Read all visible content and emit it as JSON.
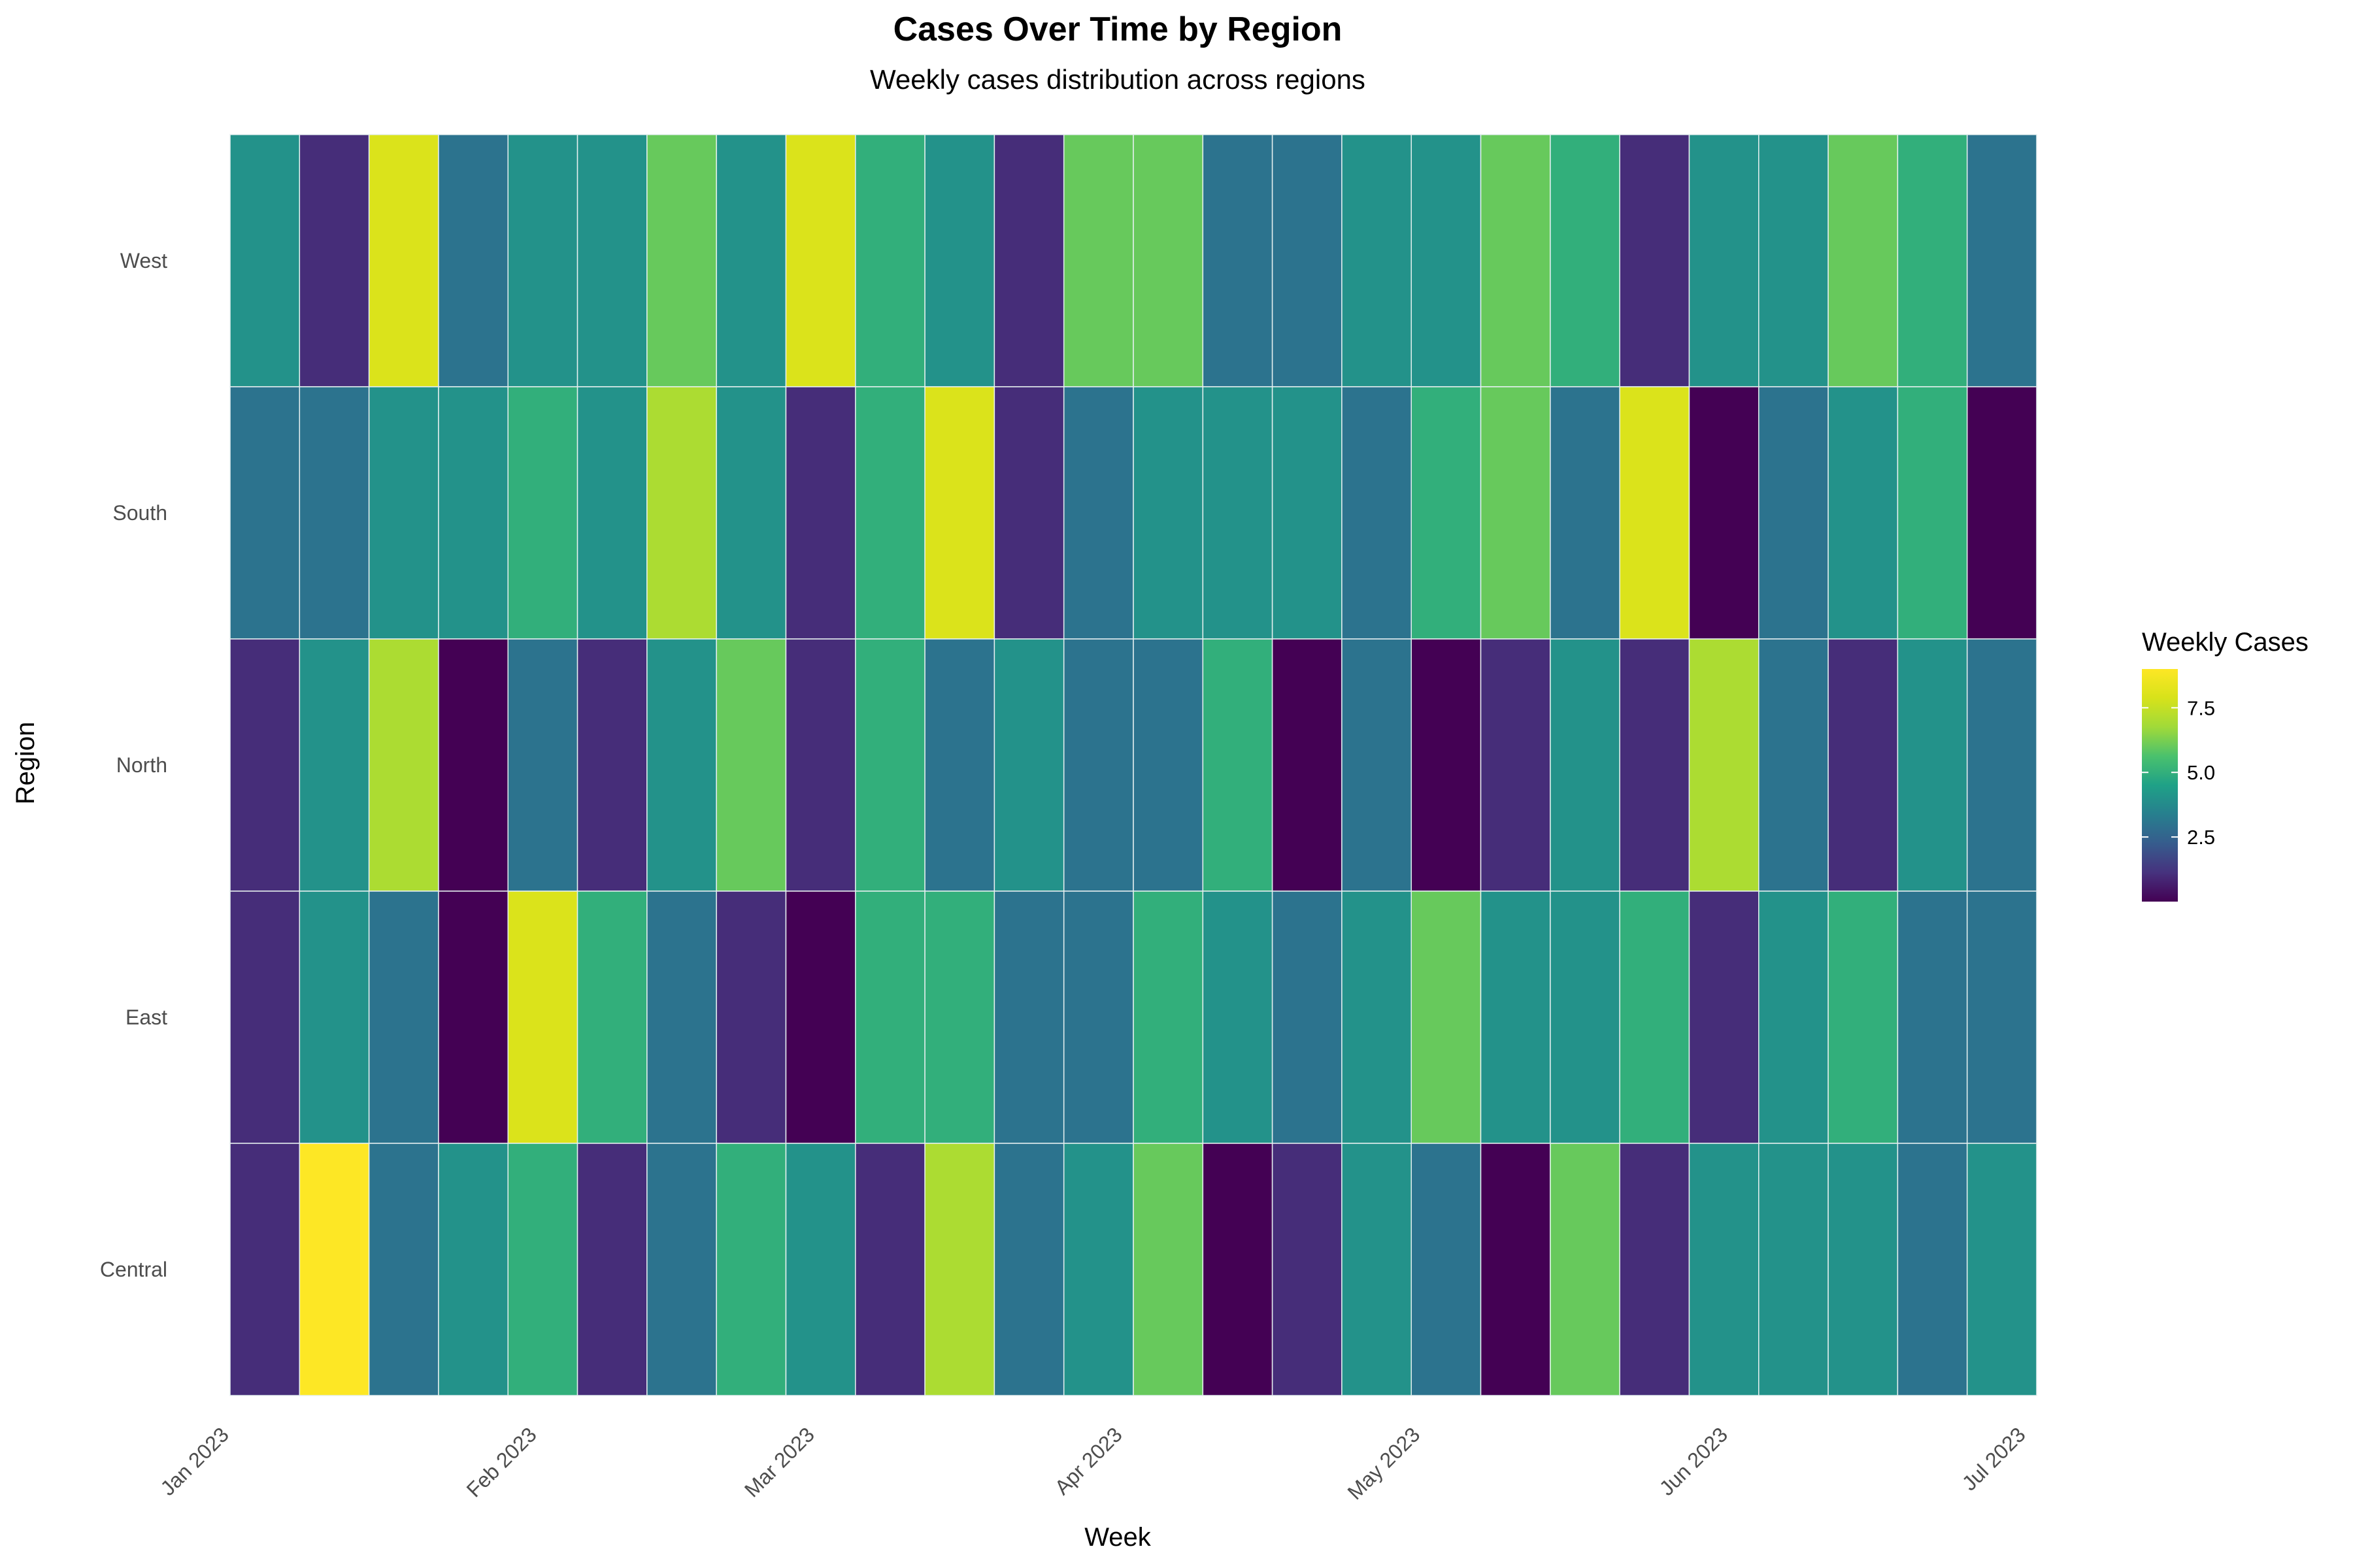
{
  "chart_data": {
    "type": "heatmap",
    "title": "Cases Over Time by Region",
    "subtitle": "Weekly cases distribution across regions",
    "xlabel": "Week",
    "ylabel": "Region",
    "legend_title": "Weekly Cases",
    "legend_position": "right",
    "colormap": "viridis",
    "value_range": [
      0,
      9
    ],
    "legend_ticks": [
      {
        "value": 2.5,
        "label": "2.5"
      },
      {
        "value": 5.0,
        "label": "5.0"
      },
      {
        "value": 7.5,
        "label": "7.5"
      }
    ],
    "x_ticks": [
      "Jan 2023",
      "Feb 2023",
      "Mar 2023",
      "Apr 2023",
      "May 2023",
      "Jun 2023",
      "Jul 2023"
    ],
    "weeks": [
      "2023-01-01",
      "2023-01-08",
      "2023-01-15",
      "2023-01-22",
      "2023-01-29",
      "2023-02-05",
      "2023-02-12",
      "2023-02-19",
      "2023-02-26",
      "2023-03-05",
      "2023-03-12",
      "2023-03-19",
      "2023-03-26",
      "2023-04-02",
      "2023-04-09",
      "2023-04-16",
      "2023-04-23",
      "2023-04-30",
      "2023-05-07",
      "2023-05-14",
      "2023-05-21",
      "2023-05-28",
      "2023-06-04",
      "2023-06-11",
      "2023-06-18",
      "2023-06-25"
    ],
    "regions": [
      "West",
      "South",
      "North",
      "East",
      "Central"
    ],
    "series": [
      {
        "name": "West",
        "values": [
          4,
          1,
          8,
          3,
          4,
          4,
          6,
          4,
          8,
          5,
          4,
          1,
          6,
          6,
          3,
          3,
          4,
          4,
          6,
          5,
          1,
          4,
          4,
          6,
          5,
          3
        ]
      },
      {
        "name": "South",
        "values": [
          3,
          3,
          4,
          4,
          5,
          4,
          7,
          4,
          1,
          5,
          8,
          1,
          3,
          4,
          4,
          4,
          3,
          5,
          6,
          3,
          8,
          0,
          3,
          4,
          5,
          0
        ]
      },
      {
        "name": "North",
        "values": [
          1,
          4,
          7,
          0,
          3,
          1,
          4,
          6,
          1,
          5,
          3,
          4,
          3,
          3,
          5,
          0,
          3,
          0,
          1,
          4,
          1,
          7,
          3,
          1,
          4,
          3
        ]
      },
      {
        "name": "East",
        "values": [
          1,
          4,
          3,
          0,
          8,
          5,
          3,
          1,
          0,
          5,
          5,
          3,
          3,
          5,
          4,
          3,
          4,
          6,
          4,
          4,
          5,
          1,
          4,
          5,
          3,
          3
        ]
      },
      {
        "name": "Central",
        "values": [
          1,
          9,
          3,
          4,
          5,
          1,
          3,
          5,
          4,
          1,
          7,
          3,
          4,
          6,
          0,
          1,
          4,
          3,
          0,
          6,
          1,
          4,
          4,
          4,
          3,
          4
        ]
      }
    ]
  }
}
